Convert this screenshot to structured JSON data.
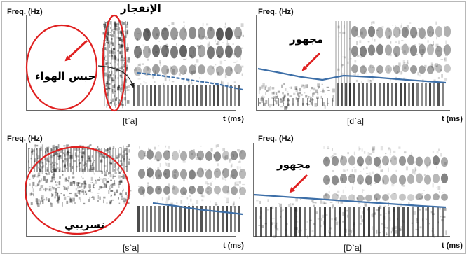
{
  "panels": [
    {
      "id": "ta",
      "y_axis_label": "Freq. (Hz)",
      "x_axis_label": "t (ms)",
      "token": "[t`a]",
      "annotations": [
        "الإنفجار",
        "حبس الهواء"
      ]
    },
    {
      "id": "da",
      "y_axis_label": "Freq. (Hz)",
      "x_axis_label": "t (ms)",
      "token": "[d`a]",
      "annotations": [
        "مجهور"
      ]
    },
    {
      "id": "sa",
      "y_axis_label": "Freq. (Hz)",
      "x_axis_label": "t (ms)",
      "token": "[s`a]",
      "annotations": [
        "تسريبي"
      ]
    },
    {
      "id": "Da",
      "y_axis_label": "Freq. (Hz)",
      "x_axis_label": "t (ms)",
      "token": "[D`a]",
      "annotations": [
        "مجهور"
      ]
    }
  ],
  "colors": {
    "pitch_contour": "#3d6fa8",
    "highlight": "#e02020",
    "axis": "#333333",
    "spectrogram_dark": "#1a1a1a",
    "frame_border": "#b8b8b8"
  }
}
